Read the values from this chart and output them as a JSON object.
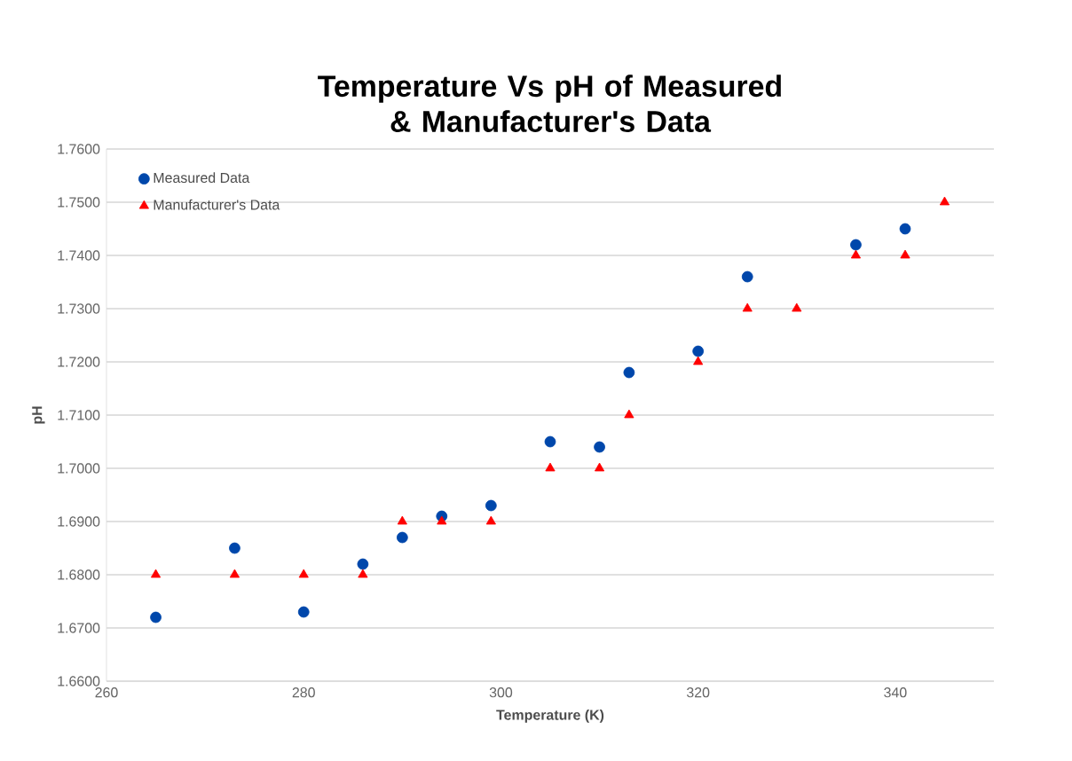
{
  "chart_data": {
    "type": "scatter",
    "title": "Temperature Vs pH of Measured & Manufacturer's Data",
    "xlabel": "Temperature (K)",
    "ylabel": "pH",
    "xlim": [
      260,
      350
    ],
    "xticks": [
      260,
      280,
      300,
      320,
      340
    ],
    "ylim": [
      1.66,
      1.76
    ],
    "yticks": [
      {
        "value": 1.66,
        "label": "1.6600"
      },
      {
        "value": 1.67,
        "label": "1.6700"
      },
      {
        "value": 1.68,
        "label": "1.6800"
      },
      {
        "value": 1.69,
        "label": "1.6900"
      },
      {
        "value": 1.7,
        "label": "1.7000"
      },
      {
        "value": 1.71,
        "label": "1.7100"
      },
      {
        "value": 1.72,
        "label": "1.7200"
      },
      {
        "value": 1.73,
        "label": "1.7300"
      },
      {
        "value": 1.74,
        "label": "1.7400"
      },
      {
        "value": 1.75,
        "label": "1.7500"
      },
      {
        "value": 1.76,
        "label": "1.7600"
      }
    ],
    "grid": "y",
    "legend": "top left",
    "series": [
      {
        "name": "Measured Data",
        "color": "#0047ab",
        "marker": "circle",
        "x": [
          265,
          273,
          280,
          286,
          290,
          294,
          299,
          305,
          310,
          313,
          320,
          325,
          336,
          341
        ],
        "values": [
          1.672,
          1.685,
          1.673,
          1.682,
          1.687,
          1.691,
          1.693,
          1.705,
          1.704,
          1.718,
          1.722,
          1.736,
          1.742,
          1.745
        ]
      },
      {
        "name": "Manufacturer's Data",
        "color": "#ff0000",
        "marker": "triangle",
        "x": [
          265,
          273,
          280,
          286,
          290,
          294,
          299,
          305,
          310,
          313,
          320,
          325,
          330,
          336,
          341,
          345
        ],
        "values": [
          1.68,
          1.68,
          1.68,
          1.68,
          1.69,
          1.69,
          1.69,
          1.7,
          1.7,
          1.71,
          1.72,
          1.73,
          1.73,
          1.74,
          1.74,
          1.75
        ]
      }
    ]
  }
}
